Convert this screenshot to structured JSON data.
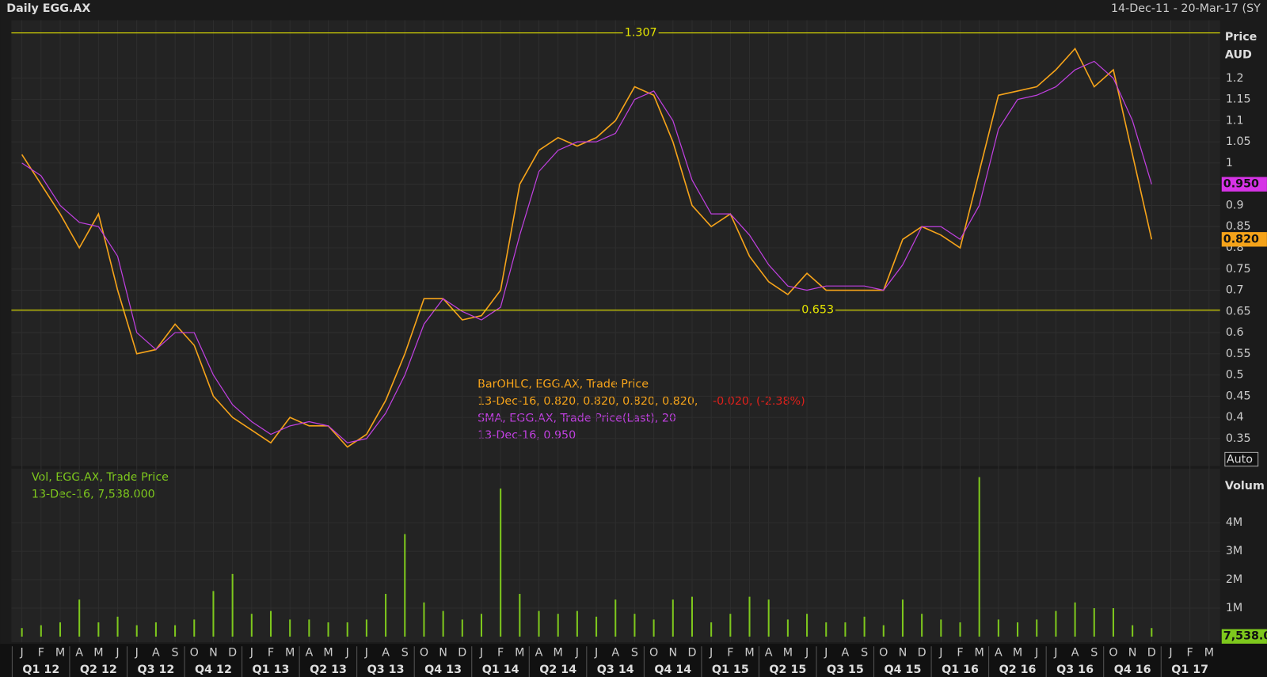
{
  "chart_data": [
    {
      "type": "line",
      "title": "Daily EGG.AX",
      "subtitle": "14-Dec-11 - 20-Mar-17 (SY",
      "y_label": "Price",
      "y_unit": "AUD",
      "auto_button": "Auto",
      "x": [
        "2012-01",
        "2012-02",
        "2012-03",
        "2012-04",
        "2012-05",
        "2012-06",
        "2012-07",
        "2012-08",
        "2012-09",
        "2012-10",
        "2012-11",
        "2012-12",
        "2013-01",
        "2013-02",
        "2013-03",
        "2013-04",
        "2013-05",
        "2013-06",
        "2013-07",
        "2013-08",
        "2013-09",
        "2013-10",
        "2013-11",
        "2013-12",
        "2014-01",
        "2014-02",
        "2014-03",
        "2014-04",
        "2014-05",
        "2014-06",
        "2014-07",
        "2014-08",
        "2014-09",
        "2014-10",
        "2014-11",
        "2014-12",
        "2015-01",
        "2015-02",
        "2015-03",
        "2015-04",
        "2015-05",
        "2015-06",
        "2015-07",
        "2015-08",
        "2015-09",
        "2015-10",
        "2015-11",
        "2015-12",
        "2016-01",
        "2016-02",
        "2016-03",
        "2016-04",
        "2016-05",
        "2016-06",
        "2016-07",
        "2016-08",
        "2016-09",
        "2016-10",
        "2016-11",
        "2016-12"
      ],
      "series": [
        {
          "name": "BarOHLC, EGG.AX, Trade Price",
          "color": "#f5a31a",
          "values": [
            1.02,
            0.95,
            0.88,
            0.8,
            0.88,
            0.7,
            0.55,
            0.56,
            0.62,
            0.57,
            0.45,
            0.4,
            0.37,
            0.34,
            0.4,
            0.38,
            0.38,
            0.33,
            0.36,
            0.44,
            0.55,
            0.68,
            0.68,
            0.63,
            0.64,
            0.7,
            0.95,
            1.03,
            1.06,
            1.04,
            1.06,
            1.1,
            1.18,
            1.16,
            1.05,
            0.9,
            0.85,
            0.88,
            0.78,
            0.72,
            0.69,
            0.74,
            0.7,
            0.7,
            0.7,
            0.7,
            0.82,
            0.85,
            0.83,
            0.8,
            0.98,
            1.16,
            1.17,
            1.18,
            1.22,
            1.27,
            1.18,
            1.22,
            1.02,
            0.82
          ]
        },
        {
          "name": "SMA, EGG.AX, Trade Price(Last),  20",
          "color": "#c040e0",
          "values": [
            1.0,
            0.97,
            0.9,
            0.86,
            0.85,
            0.78,
            0.6,
            0.56,
            0.6,
            0.6,
            0.5,
            0.43,
            0.39,
            0.36,
            0.38,
            0.39,
            0.38,
            0.34,
            0.35,
            0.41,
            0.5,
            0.62,
            0.68,
            0.65,
            0.63,
            0.66,
            0.83,
            0.98,
            1.03,
            1.05,
            1.05,
            1.07,
            1.15,
            1.17,
            1.1,
            0.96,
            0.88,
            0.88,
            0.83,
            0.76,
            0.71,
            0.7,
            0.71,
            0.71,
            0.71,
            0.7,
            0.76,
            0.85,
            0.85,
            0.82,
            0.9,
            1.08,
            1.15,
            1.16,
            1.18,
            1.22,
            1.24,
            1.2,
            1.1,
            0.95
          ]
        }
      ],
      "legend_details": [
        "13-Dec-16, 0.820, 0.820, 0.820, 0.820,",
        "-0.020, (-2.38%)",
        "13-Dec-16, 0.950"
      ],
      "ylim": [
        0.285,
        1.337
      ],
      "yticks": [
        0.35,
        0.4,
        0.45,
        0.5,
        0.55,
        0.6,
        0.65,
        0.7,
        0.75,
        0.8,
        0.85,
        0.9,
        0.95,
        1,
        1.05,
        1.1,
        1.15,
        1.2
      ],
      "grid": true,
      "reference_lines": [
        1.307,
        0.653
      ],
      "reference_color": "#e6e600",
      "last_value_tags": [
        {
          "value": 0.95,
          "label": "0.950",
          "color": "#d633e6"
        },
        {
          "value": 0.82,
          "label": "0.820",
          "color": "#f5a31a"
        }
      ],
      "month_labels": [
        "J",
        "F",
        "M",
        "A",
        "M",
        "J",
        "J",
        "A",
        "S",
        "O",
        "N",
        "D",
        "J",
        "F",
        "M",
        "A",
        "M",
        "J",
        "J",
        "A",
        "S",
        "O",
        "N",
        "D",
        "J",
        "F",
        "M",
        "A",
        "M",
        "J",
        "J",
        "A",
        "S",
        "O",
        "N",
        "D",
        "J",
        "F",
        "M",
        "A",
        "M",
        "J",
        "J",
        "A",
        "S",
        "O",
        "N",
        "D",
        "J",
        "F",
        "M",
        "A",
        "M",
        "J",
        "J",
        "A",
        "S",
        "O",
        "N",
        "D",
        "J",
        "F",
        "M"
      ],
      "quarter_labels": [
        "Q1 12",
        "Q2 12",
        "Q3 12",
        "Q4 12",
        "Q1 13",
        "Q2 13",
        "Q3 13",
        "Q4 13",
        "Q1 14",
        "Q2 14",
        "Q3 14",
        "Q4 14",
        "Q1 15",
        "Q2 15",
        "Q3 15",
        "Q4 15",
        "Q1 16",
        "Q2 16",
        "Q3 16",
        "Q4 16",
        "Q1 17"
      ]
    },
    {
      "type": "bar",
      "y_label": "Volum",
      "series": [
        {
          "name": "Vol, EGG.AX, Trade Price",
          "color": "#7ec81d",
          "values": [
            300000,
            400000,
            500000,
            1300000,
            500000,
            700000,
            400000,
            500000,
            400000,
            600000,
            1600000,
            2200000,
            800000,
            900000,
            600000,
            600000,
            500000,
            500000,
            600000,
            1500000,
            3600000,
            1200000,
            900000,
            600000,
            800000,
            5200000,
            1500000,
            900000,
            800000,
            900000,
            700000,
            1300000,
            800000,
            600000,
            1300000,
            1400000,
            500000,
            800000,
            1400000,
            1300000,
            600000,
            800000,
            500000,
            500000,
            700000,
            400000,
            1300000,
            800000,
            600000,
            500000,
            5600000,
            600000,
            500000,
            600000,
            900000,
            1200000,
            1000000,
            1000000,
            400000,
            300000
          ]
        }
      ],
      "legend_details": [
        "13-Dec-16, 7,538.000"
      ],
      "ylim": [
        0,
        5900000
      ],
      "yticks": [
        {
          "value": 1000000,
          "label": "1M"
        },
        {
          "value": 2000000,
          "label": "2M"
        },
        {
          "value": 3000000,
          "label": "3M"
        },
        {
          "value": 4000000,
          "label": "4M"
        }
      ],
      "grid": true,
      "last_value_tags": [
        {
          "value": 7538,
          "label": "7,538.0",
          "color": "#7ec81d"
        }
      ]
    }
  ]
}
